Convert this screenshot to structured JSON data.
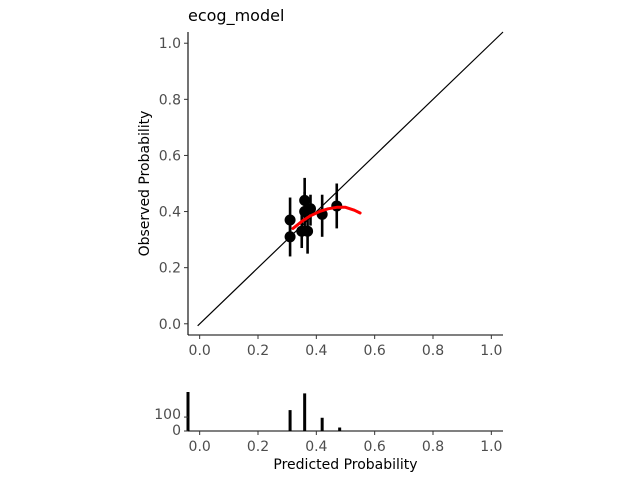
{
  "chart_data": [
    {
      "type": "scatter",
      "title": "ecog_model",
      "xlabel": "",
      "ylabel": "Observed Probability",
      "xlim": [
        -0.04,
        1.04
      ],
      "ylim": [
        -0.04,
        1.04
      ],
      "xticks": [
        "0.0",
        "0.2",
        "0.4",
        "0.6",
        "0.8",
        "1.0"
      ],
      "yticks": [
        "0.0",
        "0.2",
        "0.4",
        "0.6",
        "0.8",
        "1.0"
      ],
      "grid": false,
      "reference_line": {
        "from": [
          0,
          0
        ],
        "to": [
          1.04,
          1.04
        ],
        "color": "#000000"
      },
      "points": [
        {
          "x": 0.31,
          "y": 0.31,
          "lo": 0.24,
          "hi": 0.38
        },
        {
          "x": 0.31,
          "y": 0.37,
          "lo": 0.3,
          "hi": 0.45
        },
        {
          "x": 0.35,
          "y": 0.33,
          "lo": 0.27,
          "hi": 0.4
        },
        {
          "x": 0.36,
          "y": 0.4,
          "lo": 0.33,
          "hi": 0.47
        },
        {
          "x": 0.36,
          "y": 0.44,
          "lo": 0.37,
          "hi": 0.52
        },
        {
          "x": 0.37,
          "y": 0.33,
          "lo": 0.25,
          "hi": 0.41
        },
        {
          "x": 0.38,
          "y": 0.41,
          "lo": 0.35,
          "hi": 0.46
        },
        {
          "x": 0.42,
          "y": 0.39,
          "lo": 0.31,
          "hi": 0.46
        },
        {
          "x": 0.47,
          "y": 0.42,
          "lo": 0.34,
          "hi": 0.5
        }
      ],
      "smooth": {
        "color": "#ff0000",
        "x": [
          0.32,
          0.35,
          0.38,
          0.41,
          0.44,
          0.47,
          0.5,
          0.53,
          0.55
        ],
        "y": [
          0.34,
          0.365,
          0.385,
          0.4,
          0.41,
          0.415,
          0.415,
          0.405,
          0.395
        ]
      },
      "point_color": "#000000"
    },
    {
      "type": "bar",
      "title": "",
      "xlabel": "Predicted Probability",
      "ylabel": "",
      "xlim": [
        -0.04,
        1.04
      ],
      "ylim": [
        0,
        280
      ],
      "xticks": [
        "0.0",
        "0.2",
        "0.4",
        "0.6",
        "0.8",
        "1.0"
      ],
      "yticks": [
        "0",
        "100"
      ],
      "grid": false,
      "bars": [
        {
          "x": -0.04,
          "value": 280
        },
        {
          "x": 0.31,
          "value": 150
        },
        {
          "x": 0.36,
          "value": 270
        },
        {
          "x": 0.42,
          "value": 95
        },
        {
          "x": 0.48,
          "value": 25
        }
      ],
      "bar_color": "#000000"
    }
  ]
}
